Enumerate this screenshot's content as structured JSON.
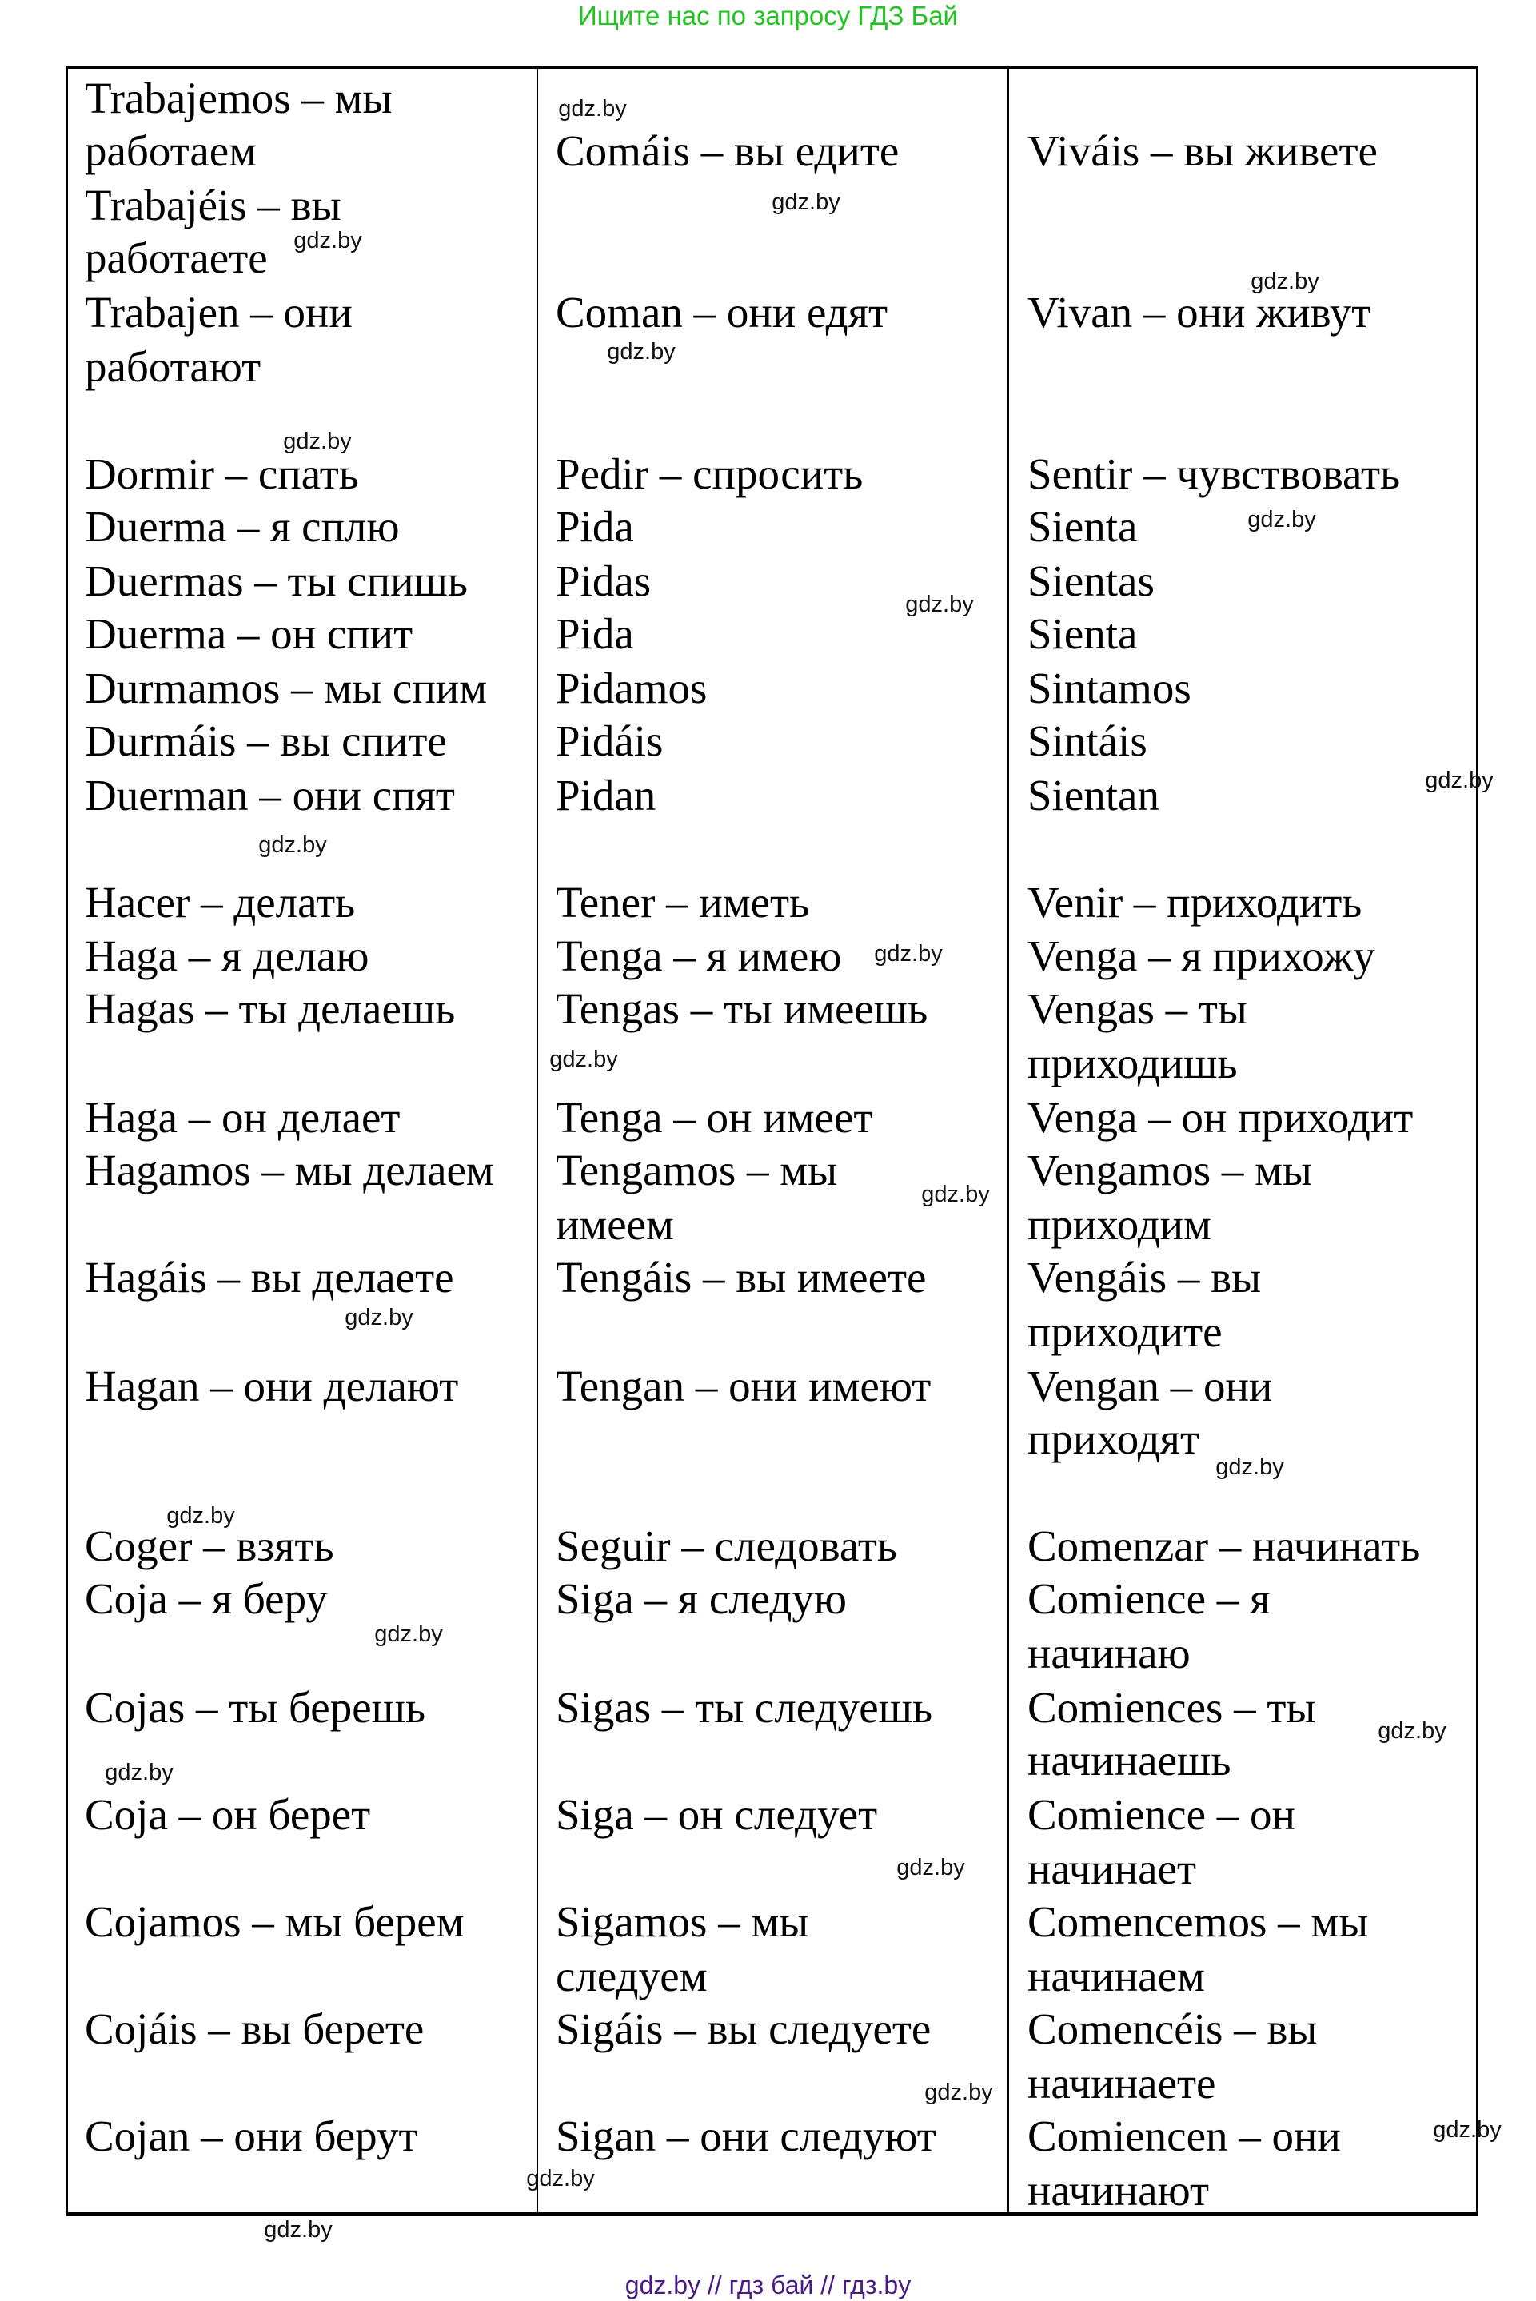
{
  "header": {
    "text": "Ищите нас по запросу ГДЗ Бай",
    "color": "#22c422"
  },
  "footer": {
    "text": "gdz.by  //  гдз бай  //  гдз.by",
    "color": "#4b1a86"
  },
  "watermark": "gdz.by",
  "columns": [
    {
      "lines": [
        "Trabajemos – мы",
        "работаем",
        "Trabajéis – вы",
        "работаете",
        "Trabajen – они",
        "работают",
        "Dormir – спать",
        "Duerma – я сплю",
        "Duermas – ты спишь",
        "Duerma – он спит",
        "Durmamos – мы спим",
        "Durmáis – вы спите",
        "Duerman – они спят",
        "Hacer – делать",
        "Haga – я делаю",
        "Hagas – ты делаешь",
        "Haga – он делает",
        "Hagamos – мы делаем",
        "Hagáis – вы делаете",
        "Hagan – они делают",
        "Coger – взять",
        "Coja – я беру",
        "Cojas – ты берешь",
        "Coja – он берет",
        "Cojamos – мы берем",
        "Cojáis – вы берете",
        "Cojan – они берут"
      ]
    },
    {
      "lines": [
        "Comáis – вы едите",
        "Coman – они едят",
        "Pedir – спросить",
        "Pida",
        "Pidas",
        "Pida",
        "Pidamos",
        "Pidáis",
        "Pidan",
        "Tener – иметь",
        "Tenga – я имею",
        "Tengas – ты имеешь",
        "Tenga – он имеет",
        "Tengamos – мы",
        "имеем",
        "Tengáis – вы имеете",
        "Tengan – они имеют",
        "Seguir – следовать",
        "Siga – я следую",
        "Sigas – ты следуешь",
        "Siga – он следует",
        "Sigamos – мы",
        "следуем",
        "Sigáis – вы следуете",
        "Sigan – они следуют"
      ]
    },
    {
      "lines": [
        "Viváis – вы живете",
        "Vivan – они живут",
        "Sentir – чувствовать",
        "Sienta",
        "Sientas",
        "Sienta",
        "Sintamos",
        "Sintáis",
        "Sientan",
        "Venir – приходить",
        "Venga – я прихожу",
        "Vengas – ты",
        "приходишь",
        "Venga – он приходит",
        "Vengamos – мы",
        "приходим",
        "Vengáis – вы",
        "приходите",
        "Vengan – они",
        "приходят",
        "Comenzar – начинать",
        "Comience – я",
        "начинаю",
        "Comiences – ты",
        "начинаешь",
        "Comience – он",
        "начинает",
        "Comencemos – мы",
        "начинаем",
        "Comencéis – вы",
        "начинаете",
        "Comiencen – они",
        "начинают"
      ]
    }
  ]
}
